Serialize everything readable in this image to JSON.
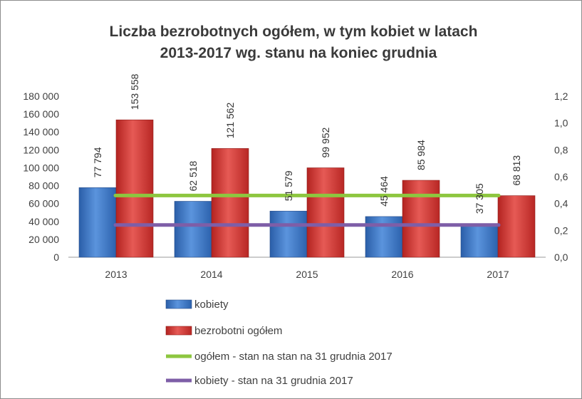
{
  "chart_data": {
    "type": "bar",
    "title_lines": [
      "Liczba bezrobotnych  ogółem, w tym kobiet w latach",
      "2013-2017 wg. stanu na koniec grudnia"
    ],
    "categories": [
      "2013",
      "2014",
      "2015",
      "2016",
      "2017"
    ],
    "series": [
      {
        "name": "kobiety",
        "values": [
          77794,
          62518,
          51579,
          45464,
          37305
        ],
        "value_labels": [
          "77 794",
          "62 518",
          "51 579",
          "45 464",
          "37 305"
        ],
        "color": "#3f79c7"
      },
      {
        "name": "bezrobotni ogółem",
        "values": [
          153558,
          121562,
          99952,
          85984,
          68813
        ],
        "value_labels": [
          "153 558",
          "121 562",
          "99 952",
          "85 984",
          "68 813"
        ],
        "color": "#d43d3a"
      }
    ],
    "lines": [
      {
        "name": "ogółem - stan na  stan na 31 grudnia 2017",
        "secondary_value": 0.46,
        "color": "#8dc63f"
      },
      {
        "name": "kobiety - stan na 31 grudnia 2017",
        "secondary_value": 0.24,
        "color": "#7e5ea7"
      }
    ],
    "y_primary": {
      "ylim": [
        0,
        180000
      ],
      "ticks": [
        0,
        20000,
        40000,
        60000,
        80000,
        100000,
        120000,
        140000,
        160000,
        180000
      ],
      "tick_labels": [
        "0",
        "20 000",
        "40 000",
        "60 000",
        "80 000",
        "100 000",
        "120 000",
        "140 000",
        "160 000",
        "180 000"
      ]
    },
    "y_secondary": {
      "ylim": [
        0,
        1.2
      ],
      "ticks": [
        0,
        0.2,
        0.4,
        0.6,
        0.8,
        1.0,
        1.2
      ],
      "tick_labels": [
        "0,0",
        "0,2",
        "0,4",
        "0,6",
        "0,8",
        "1,0",
        "1,2"
      ]
    },
    "grid": false,
    "legend_position": "bottom"
  }
}
